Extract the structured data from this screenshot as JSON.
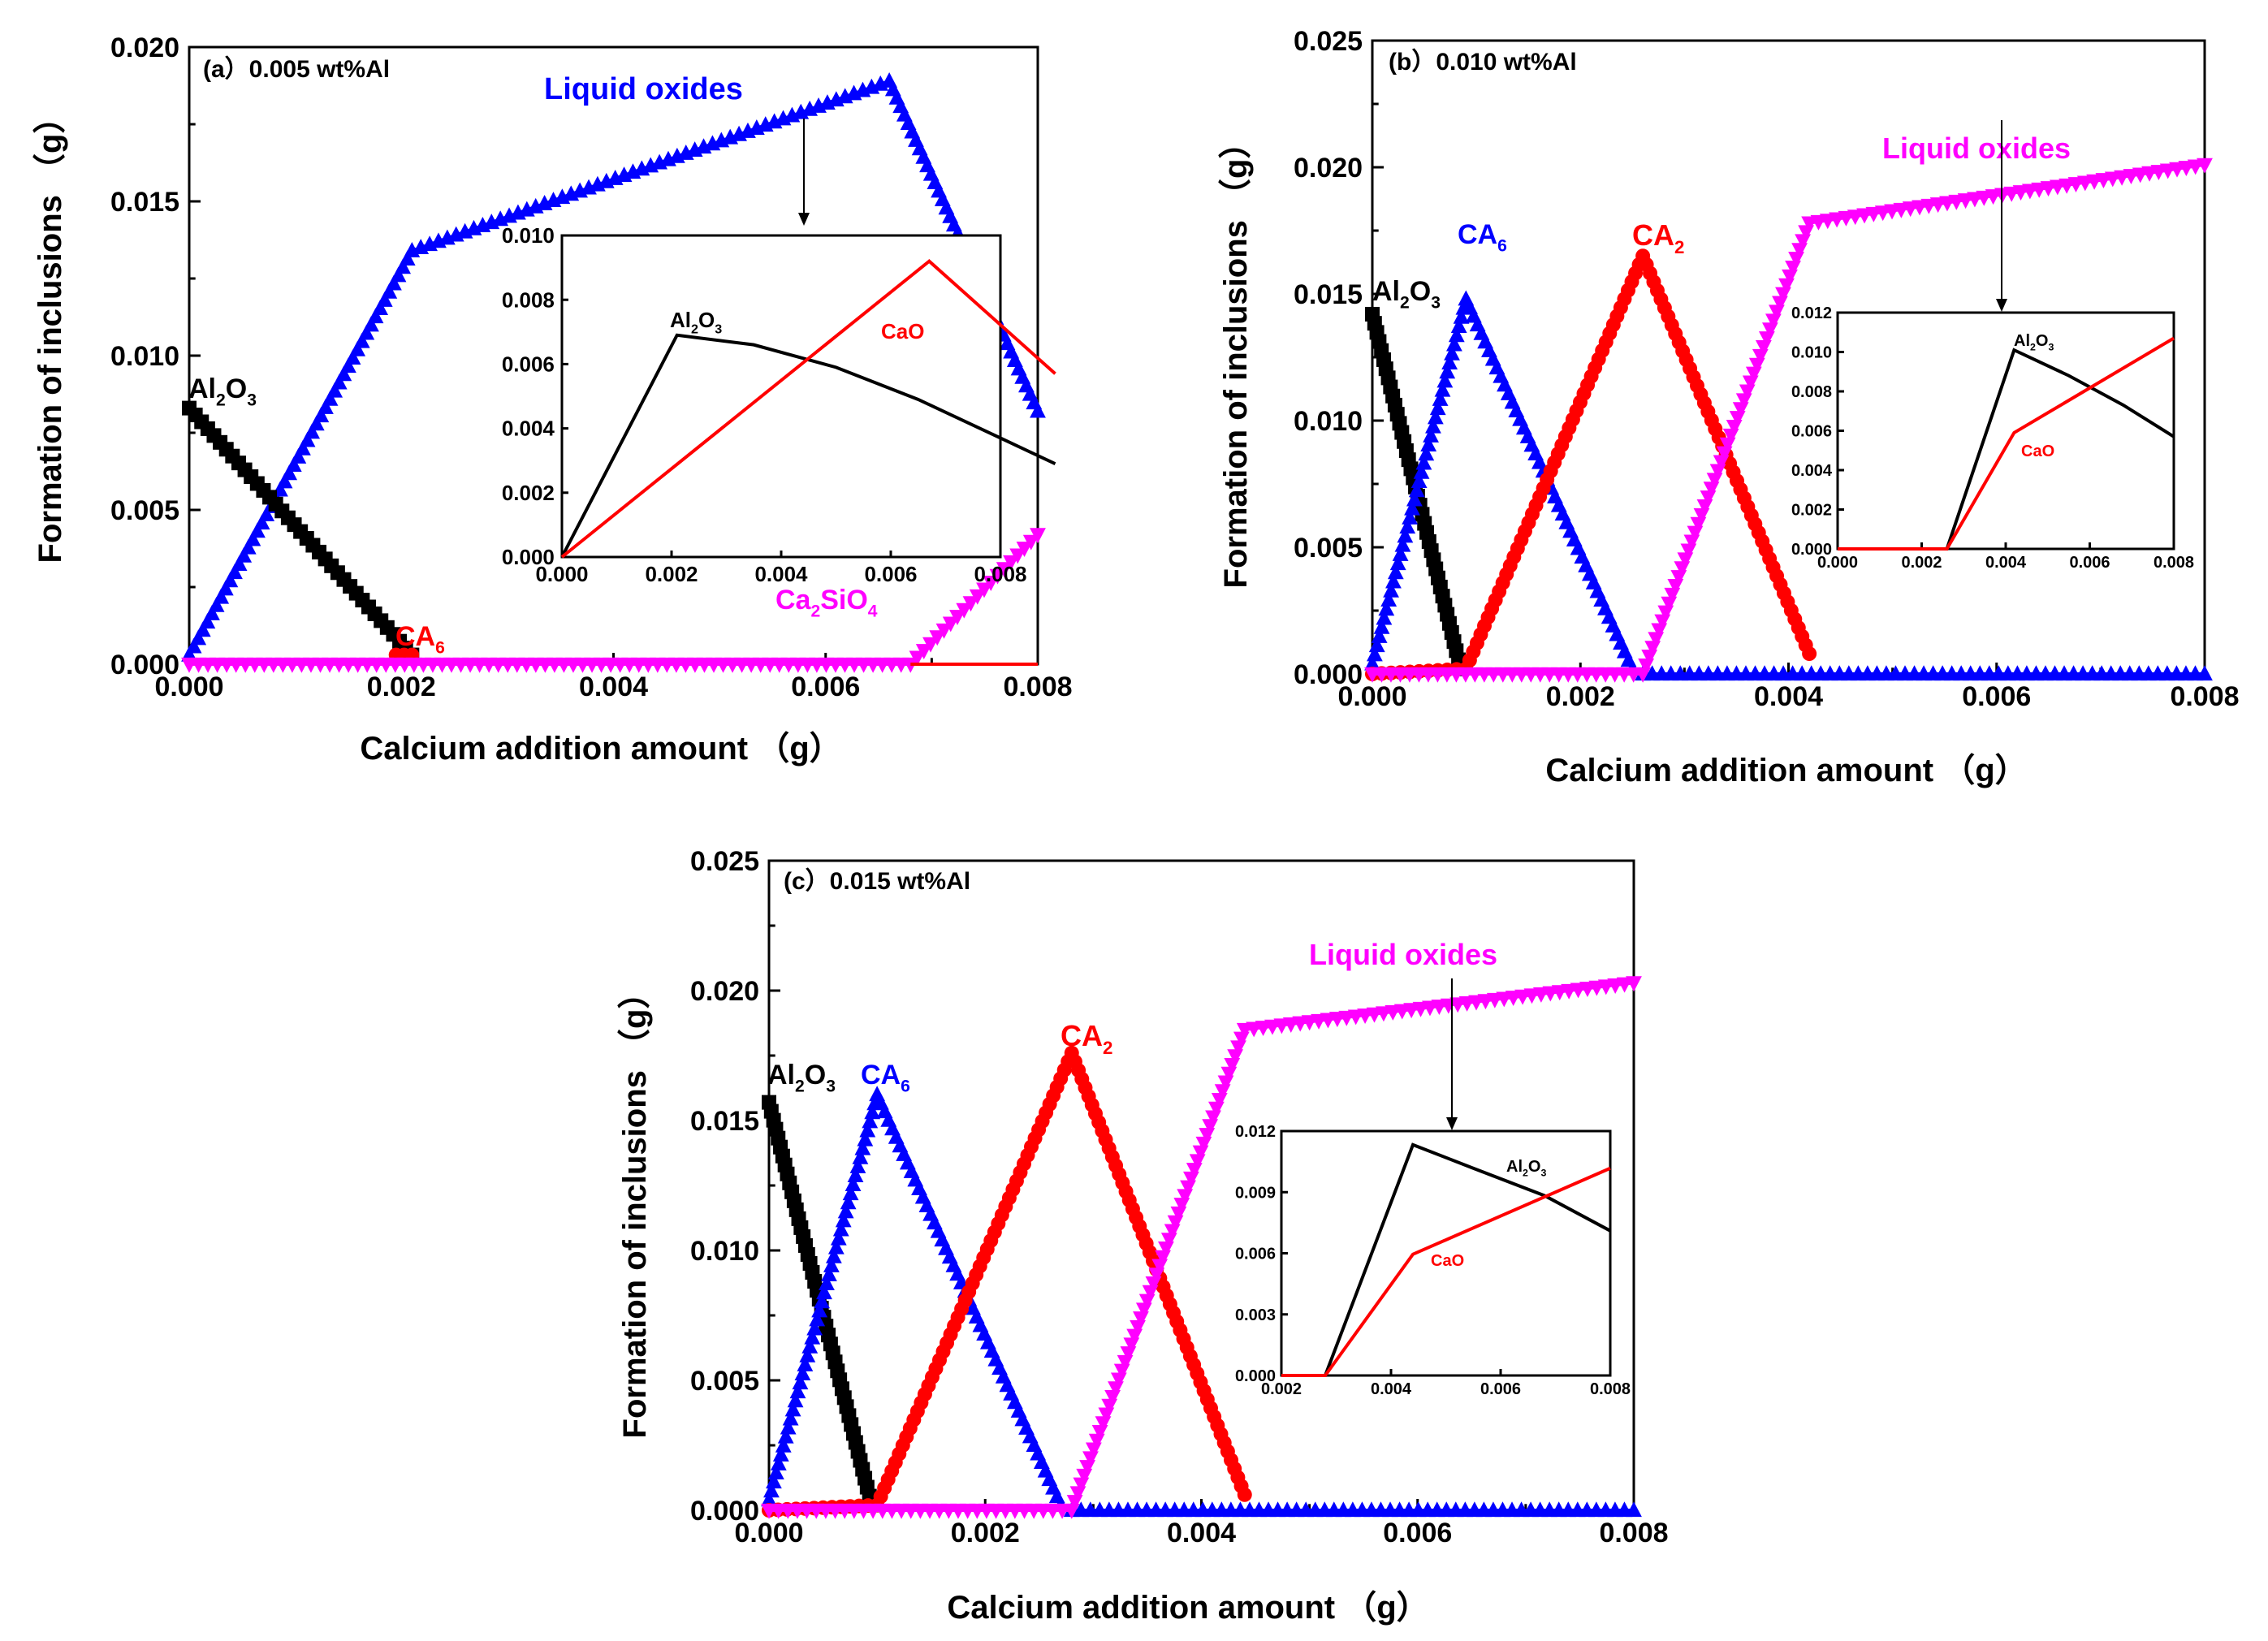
{
  "chart_data": [
    {
      "id": "a",
      "type": "line",
      "panel_label": "(a）0.005 wt%Al",
      "xlabel": "Calcium addition amount （g）",
      "ylabel": "Formation of inclusions （g）",
      "xlim": [
        0,
        0.008
      ],
      "ylim": [
        0,
        0.02
      ],
      "xticks": [
        "0.000",
        "0.002",
        "0.004",
        "0.006",
        "0.008"
      ],
      "yticks": [
        "0.000",
        "0.005",
        "0.010",
        "0.015",
        "0.020"
      ],
      "series": [
        {
          "name": "Liquid oxides",
          "color": "#0000ff",
          "marker": "triangle-up",
          "x": [
            0,
            0.0021,
            0.0066,
            0.008
          ],
          "y": [
            0.0003,
            0.0134,
            0.0189,
            0.0082
          ]
        },
        {
          "name": "Al2O3",
          "color": "#000000",
          "marker": "square",
          "x": [
            0,
            0.0021
          ],
          "y": [
            0.0083,
            0.0003
          ]
        },
        {
          "name": "CA6",
          "color": "#ff0000",
          "marker": "circle",
          "x": [
            0.00195,
            0.0021
          ],
          "y": [
            0.0003,
            0.0003
          ]
        },
        {
          "name": "Ca2SiO4",
          "color": "#ff00ff",
          "marker": "triangle-down",
          "x": [
            0,
            0.0068,
            0.008
          ],
          "y": [
            0,
            0,
            0.0042
          ]
        },
        {
          "color": "#ff0000",
          "marker": "none",
          "x": [
            0.0068,
            0.008
          ],
          "y": [
            0,
            0
          ]
        }
      ],
      "annotations": [
        {
          "text": "Liquid oxides",
          "color": "#0000ff"
        },
        {
          "text_main": "Al",
          "sub1": "2",
          "mid": "O",
          "sub2": "3",
          "color": "#000000"
        },
        {
          "text_main": "CA",
          "sub1": "6",
          "color": "#ff0000"
        },
        {
          "text_main": "Ca",
          "sub1": "2",
          "mid": "SiO",
          "sub2": "4",
          "color": "#ff00ff"
        }
      ],
      "inset": {
        "xlim": [
          0,
          0.008
        ],
        "ylim": [
          0,
          0.01
        ],
        "xticks": [
          "0.000",
          "0.002",
          "0.004",
          "0.006",
          "0.008"
        ],
        "yticks": [
          "0.000",
          "0.002",
          "0.004",
          "0.006",
          "0.008",
          "0.010"
        ],
        "series": [
          {
            "name": "Al2O3",
            "color": "#000000",
            "x": [
              0,
              0.0021,
              0.0035,
              0.005,
              0.0065,
              0.008,
              0.009
            ],
            "y": [
              0,
              0.0069,
              0.0066,
              0.0059,
              0.0049,
              0.0037,
              0.0029
            ]
          },
          {
            "name": "CaO",
            "color": "#ff0000",
            "x": [
              0,
              0.0067,
              0.009
            ],
            "y": [
              0,
              0.0092,
              0.0057
            ]
          }
        ],
        "labels": [
          {
            "text_main": "Al",
            "sub1": "2",
            "mid": "O",
            "sub2": "3",
            "color": "#000000"
          },
          {
            "text": "CaO",
            "color": "#ff0000"
          }
        ]
      }
    },
    {
      "id": "b",
      "type": "line",
      "panel_label": "(b）0.010 wt%Al",
      "xlabel": "Calcium addition amount （g）",
      "ylabel": "Formation of inclusions （g）",
      "xlim": [
        0,
        0.008
      ],
      "ylim": [
        0,
        0.025
      ],
      "xticks": [
        "0.000",
        "0.002",
        "0.004",
        "0.006",
        "0.008"
      ],
      "yticks": [
        "0.000",
        "0.005",
        "0.010",
        "0.015",
        "0.020",
        "0.025"
      ],
      "series": [
        {
          "name": "Al2O3",
          "color": "#000000",
          "marker": "square",
          "x": [
            0,
            0.00085
          ],
          "y": [
            0.0142,
            0.0002
          ]
        },
        {
          "name": "CA6",
          "color": "#0000ff",
          "marker": "triangle-up",
          "x": [
            0,
            0.0009,
            0.0025,
            0.0026,
            0.008
          ],
          "y": [
            0.0004,
            0.0148,
            0.0002,
            0,
            0
          ]
        },
        {
          "name": "CA2",
          "color": "#ff0000",
          "marker": "circle",
          "x": [
            0,
            0.0009,
            0.0026,
            0.0042
          ],
          "y": [
            0,
            0.0002,
            0.0165,
            0.0008
          ]
        },
        {
          "name": "Liquid oxides",
          "color": "#ff00ff",
          "marker": "triangle-down",
          "x": [
            0,
            0.0026,
            0.0042,
            0.008
          ],
          "y": [
            0,
            0,
            0.0178,
            0.0201
          ]
        }
      ],
      "annotations": [
        {
          "text": "Liquid oxides",
          "color": "#ff00ff"
        },
        {
          "text_main": "Al",
          "sub1": "2",
          "mid": "O",
          "sub2": "3",
          "color": "#000000"
        },
        {
          "text_main": "CA",
          "sub1": "6",
          "color": "#0000ff"
        },
        {
          "text_main": "CA",
          "sub1": "2",
          "color": "#ff0000"
        }
      ],
      "inset": {
        "xlim": [
          0,
          0.008
        ],
        "ylim": [
          0,
          0.012
        ],
        "xticks": [
          "0.000",
          "0.002",
          "0.004",
          "0.006",
          "0.008"
        ],
        "yticks": [
          "0.000",
          "0.002",
          "0.004",
          "0.006",
          "0.008",
          "0.010",
          "0.012"
        ],
        "series": [
          {
            "name": "Al2O3",
            "color": "#000000",
            "x": [
              0,
              0.0026,
              0.0042,
              0.0055,
              0.0068,
              0.008
            ],
            "y": [
              0,
              0,
              0.0101,
              0.0088,
              0.0073,
              0.0057
            ]
          },
          {
            "name": "CaO",
            "color": "#ff0000",
            "x": [
              0,
              0.0026,
              0.0042,
              0.008
            ],
            "y": [
              0,
              0,
              0.0059,
              0.0107
            ]
          }
        ],
        "labels": [
          {
            "text_main": "Al",
            "sub1": "2",
            "mid": "O",
            "sub2": "3",
            "color": "#000000"
          },
          {
            "text": "CaO",
            "color": "#ff0000"
          }
        ]
      }
    },
    {
      "id": "c",
      "type": "line",
      "panel_label": "(c）0.015 wt%Al",
      "xlabel": "Calcium addition amount （g）",
      "ylabel": "Formation of inclusions （g）",
      "xlim": [
        0,
        0.008
      ],
      "ylim": [
        0,
        0.025
      ],
      "xticks": [
        "0.000",
        "0.002",
        "0.004",
        "0.006",
        "0.008"
      ],
      "yticks": [
        "0.000",
        "0.005",
        "0.010",
        "0.015",
        "0.020",
        "0.025"
      ],
      "series": [
        {
          "name": "Al2O3",
          "color": "#000000",
          "marker": "square",
          "x": [
            0,
            0.00095
          ],
          "y": [
            0.0157,
            0.0002
          ]
        },
        {
          "name": "CA6",
          "color": "#0000ff",
          "marker": "triangle-up",
          "x": [
            0,
            0.001,
            0.0027,
            0.0028,
            0.008
          ],
          "y": [
            0.0004,
            0.016,
            0.0002,
            0,
            0
          ]
        },
        {
          "name": "CA2",
          "color": "#ff0000",
          "marker": "circle",
          "x": [
            0,
            0.001,
            0.0028,
            0.0044
          ],
          "y": [
            0,
            0.0002,
            0.0176,
            0.0006
          ]
        },
        {
          "name": "Liquid oxides",
          "color": "#ff00ff",
          "marker": "triangle-down",
          "x": [
            0,
            0.0028,
            0.0044,
            0.008
          ],
          "y": [
            0,
            0,
            0.0185,
            0.0203
          ]
        }
      ],
      "annotations": [
        {
          "text": "Liquid oxides",
          "color": "#ff00ff"
        },
        {
          "text_main": "Al",
          "sub1": "2",
          "mid": "O",
          "sub2": "3",
          "color": "#000000"
        },
        {
          "text_main": "CA",
          "sub1": "6",
          "color": "#0000ff"
        },
        {
          "text_main": "CA",
          "sub1": "2",
          "color": "#ff0000"
        }
      ],
      "inset": {
        "xlim": [
          0.002,
          0.008
        ],
        "ylim": [
          0,
          0.0125
        ],
        "xticks": [
          "0.002",
          "0.004",
          "0.006",
          "0.008"
        ],
        "yticks": [
          "0.000",
          "0.003",
          "0.006",
          "0.009",
          "0.012"
        ],
        "series": [
          {
            "name": "Al2O3",
            "color": "#000000",
            "x": [
              0.002,
              0.0028,
              0.0044,
              0.0055,
              0.0068,
              0.008
            ],
            "y": [
              0,
              0,
              0.0118,
              0.0106,
              0.0092,
              0.0074
            ]
          },
          {
            "name": "CaO",
            "color": "#ff0000",
            "x": [
              0.002,
              0.0028,
              0.0044,
              0.008
            ],
            "y": [
              0,
              0,
              0.0062,
              0.0106
            ]
          }
        ],
        "labels": [
          {
            "text_main": "Al",
            "sub1": "2",
            "mid": "O",
            "sub2": "3",
            "color": "#000000"
          },
          {
            "text": "CaO",
            "color": "#ff0000"
          }
        ]
      }
    }
  ]
}
